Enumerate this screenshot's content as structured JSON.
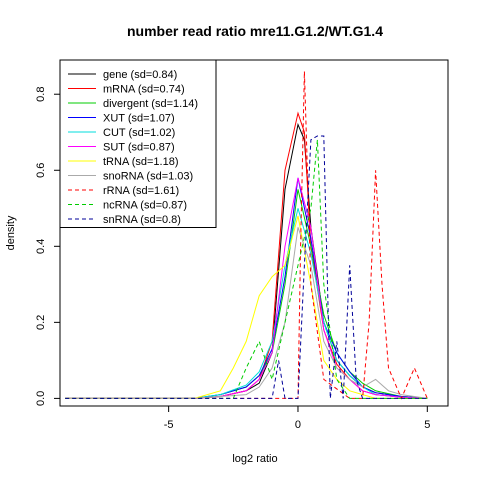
{
  "chart_data": {
    "type": "line",
    "title": "number read ratio mre11.G1.2/WT.G1.4",
    "xlabel": "log2 ratio",
    "ylabel": "density",
    "xlim": [
      -9.2,
      5.8
    ],
    "ylim": [
      -0.02,
      0.89
    ],
    "xticks": [
      -5,
      0,
      5
    ],
    "xtick_labels": [
      "-5",
      "0",
      "5"
    ],
    "yticks": [
      0.0,
      0.2,
      0.4,
      0.6,
      0.8
    ],
    "ytick_labels": [
      "0.0",
      "0.2",
      "0.4",
      "0.6",
      "0.8"
    ],
    "grid": false,
    "legend_position": "top-left",
    "series": [
      {
        "name": "gene (sd=0.84)",
        "color": "#000000",
        "dash": false,
        "x": [
          -9,
          -4,
          -3,
          -2,
          -1.5,
          -1,
          -0.5,
          0,
          0.25,
          0.5,
          1,
          1.5,
          2,
          2.5,
          3,
          3.5,
          4,
          5
        ],
        "y": [
          0,
          0,
          0.005,
          0.02,
          0.04,
          0.12,
          0.55,
          0.72,
          0.68,
          0.45,
          0.2,
          0.1,
          0.06,
          0.03,
          0.015,
          0.01,
          0.005,
          0
        ]
      },
      {
        "name": "mRNA (sd=0.74)",
        "color": "#ff0000",
        "dash": false,
        "x": [
          -9,
          -4,
          -3,
          -2,
          -1.5,
          -1,
          -0.5,
          0,
          0.25,
          0.5,
          1,
          1.5,
          2,
          2.5,
          3,
          4,
          5
        ],
        "y": [
          0,
          0,
          0.005,
          0.02,
          0.05,
          0.15,
          0.6,
          0.75,
          0.7,
          0.4,
          0.18,
          0.09,
          0.05,
          0.02,
          0.01,
          0.003,
          0
        ]
      },
      {
        "name": "divergent (sd=1.14)",
        "color": "#00cc00",
        "dash": false,
        "x": [
          -9,
          -4,
          -3,
          -2,
          -1.5,
          -1,
          -0.5,
          0,
          0.5,
          1,
          1.5,
          2,
          2.5,
          3,
          4,
          5
        ],
        "y": [
          0,
          0,
          0.01,
          0.03,
          0.06,
          0.12,
          0.3,
          0.55,
          0.4,
          0.22,
          0.12,
          0.07,
          0.04,
          0.02,
          0.005,
          0
        ]
      },
      {
        "name": "XUT (sd=1.07)",
        "color": "#0000ff",
        "dash": false,
        "x": [
          -9,
          -4,
          -3,
          -2,
          -1.5,
          -1,
          -0.5,
          0,
          0.5,
          1,
          1.5,
          2,
          2.5,
          3,
          4,
          5
        ],
        "y": [
          0,
          0,
          0.01,
          0.03,
          0.06,
          0.13,
          0.32,
          0.58,
          0.42,
          0.2,
          0.12,
          0.07,
          0.03,
          0.015,
          0.005,
          0
        ]
      },
      {
        "name": "CUT (sd=1.02)",
        "color": "#00dddd",
        "dash": false,
        "x": [
          -9,
          -4,
          -3,
          -2,
          -1.5,
          -1,
          -0.5,
          0,
          0.5,
          1,
          1.5,
          2,
          2.5,
          3,
          4,
          5
        ],
        "y": [
          0,
          0,
          0.01,
          0.035,
          0.07,
          0.15,
          0.35,
          0.5,
          0.38,
          0.2,
          0.1,
          0.06,
          0.03,
          0.01,
          0.003,
          0
        ]
      },
      {
        "name": "SUT (sd=0.87)",
        "color": "#ff00ff",
        "dash": false,
        "x": [
          -9,
          -4,
          -3,
          -2,
          -1.5,
          -1,
          -0.5,
          0,
          0.5,
          1,
          1.5,
          2,
          2.5,
          3,
          4,
          5
        ],
        "y": [
          0,
          0,
          0.005,
          0.02,
          0.05,
          0.12,
          0.4,
          0.58,
          0.45,
          0.18,
          0.08,
          0.05,
          0.02,
          0.01,
          0.003,
          0
        ]
      },
      {
        "name": "tRNA (sd=1.18)",
        "color": "#ffff00",
        "dash": false,
        "x": [
          -9,
          -4,
          -3,
          -2.5,
          -2,
          -1.5,
          -1,
          -0.5,
          0,
          0.5,
          1,
          1.5,
          2,
          2.5,
          3,
          5
        ],
        "y": [
          0,
          0,
          0.02,
          0.08,
          0.15,
          0.27,
          0.32,
          0.35,
          0.48,
          0.3,
          0.1,
          0.05,
          0.02,
          0.01,
          0,
          0
        ]
      },
      {
        "name": "snoRNA (sd=1.03)",
        "color": "#aaaaaa",
        "dash": false,
        "x": [
          -9,
          -4,
          -2,
          -1.5,
          -1,
          -0.5,
          0,
          0.5,
          1,
          1.5,
          2,
          2.5,
          3,
          3.5,
          4,
          5
        ],
        "y": [
          0,
          0,
          0.01,
          0.03,
          0.08,
          0.2,
          0.45,
          0.35,
          0.15,
          0.08,
          0.05,
          0.03,
          0.05,
          0.02,
          0.01,
          0
        ]
      },
      {
        "name": "rRNA (sd=1.61)",
        "color": "#ff0000",
        "dash": true,
        "x": [
          -9,
          0,
          0.1,
          0.25,
          0.5,
          1,
          2,
          2.5,
          2.75,
          3,
          3.25,
          3.5,
          4,
          4.5,
          5
        ],
        "y": [
          0,
          0,
          0.4,
          0.86,
          0.3,
          0.05,
          0,
          0,
          0.2,
          0.6,
          0.3,
          0.08,
          0,
          0.08,
          0
        ]
      },
      {
        "name": "ncRNA (sd=0.87)",
        "color": "#00cc00",
        "dash": true,
        "x": [
          -9,
          -2.5,
          -2,
          -1.5,
          -1,
          -0.5,
          0,
          0.5,
          0.75,
          1,
          1.5,
          2,
          2.5,
          5
        ],
        "y": [
          0,
          0,
          0.08,
          0.15,
          0.05,
          0.2,
          0.35,
          0.5,
          0.68,
          0.3,
          0.05,
          0,
          0,
          0
        ]
      },
      {
        "name": "snRNA (sd=0.8)",
        "color": "#000099",
        "dash": true,
        "x": [
          -9,
          -1,
          -0.75,
          -0.5,
          0,
          0.25,
          0.5,
          0.75,
          1,
          1.25,
          1.5,
          1.75,
          2,
          2.25,
          2.5,
          5
        ],
        "y": [
          0,
          0,
          0.1,
          0,
          0,
          0.35,
          0.68,
          0.69,
          0.69,
          0,
          0.15,
          0,
          0.35,
          0.05,
          0,
          0
        ]
      }
    ]
  }
}
